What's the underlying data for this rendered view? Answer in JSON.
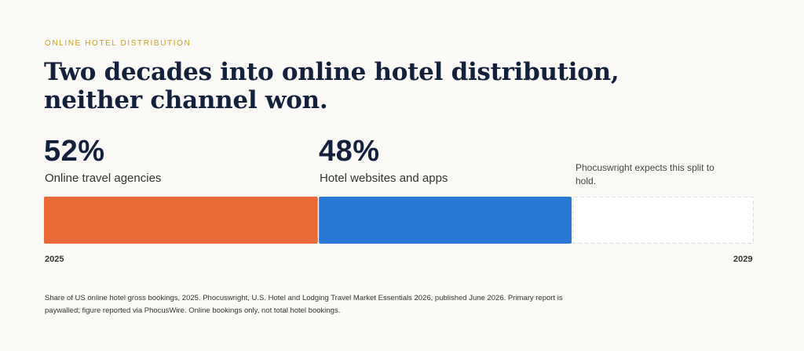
{
  "eyebrow": "ONLINE HOTEL DISTRIBUTION",
  "headline": "Two decades into online hotel distribution, neither channel won.",
  "note": "Phocuswright expects this split to hold.",
  "source": "Share of US online hotel gross bookings, 2025. Phocuswright, U.S. Hotel and Lodging Travel Market Essentials 2026, published June 2026. Primary report is paywalled; figure reported via PhocusWire. Online bookings only, not total hotel bookings.",
  "colors": {
    "ota": "#ec6a37",
    "direct": "#2a78d6",
    "projection_border": "#d9d9d9"
  },
  "chart_data": {
    "type": "bar",
    "stacked": true,
    "orientation": "horizontal",
    "x": [
      "2025",
      "2029"
    ],
    "series": [
      {
        "name": "Online travel agencies",
        "value": 52,
        "display": "52%"
      },
      {
        "name": "Hotel websites and apps",
        "value": 48,
        "display": "48%"
      }
    ],
    "unit": "%",
    "projection": {
      "from": "2025",
      "to": "2029",
      "style": "dashed-outline"
    }
  }
}
